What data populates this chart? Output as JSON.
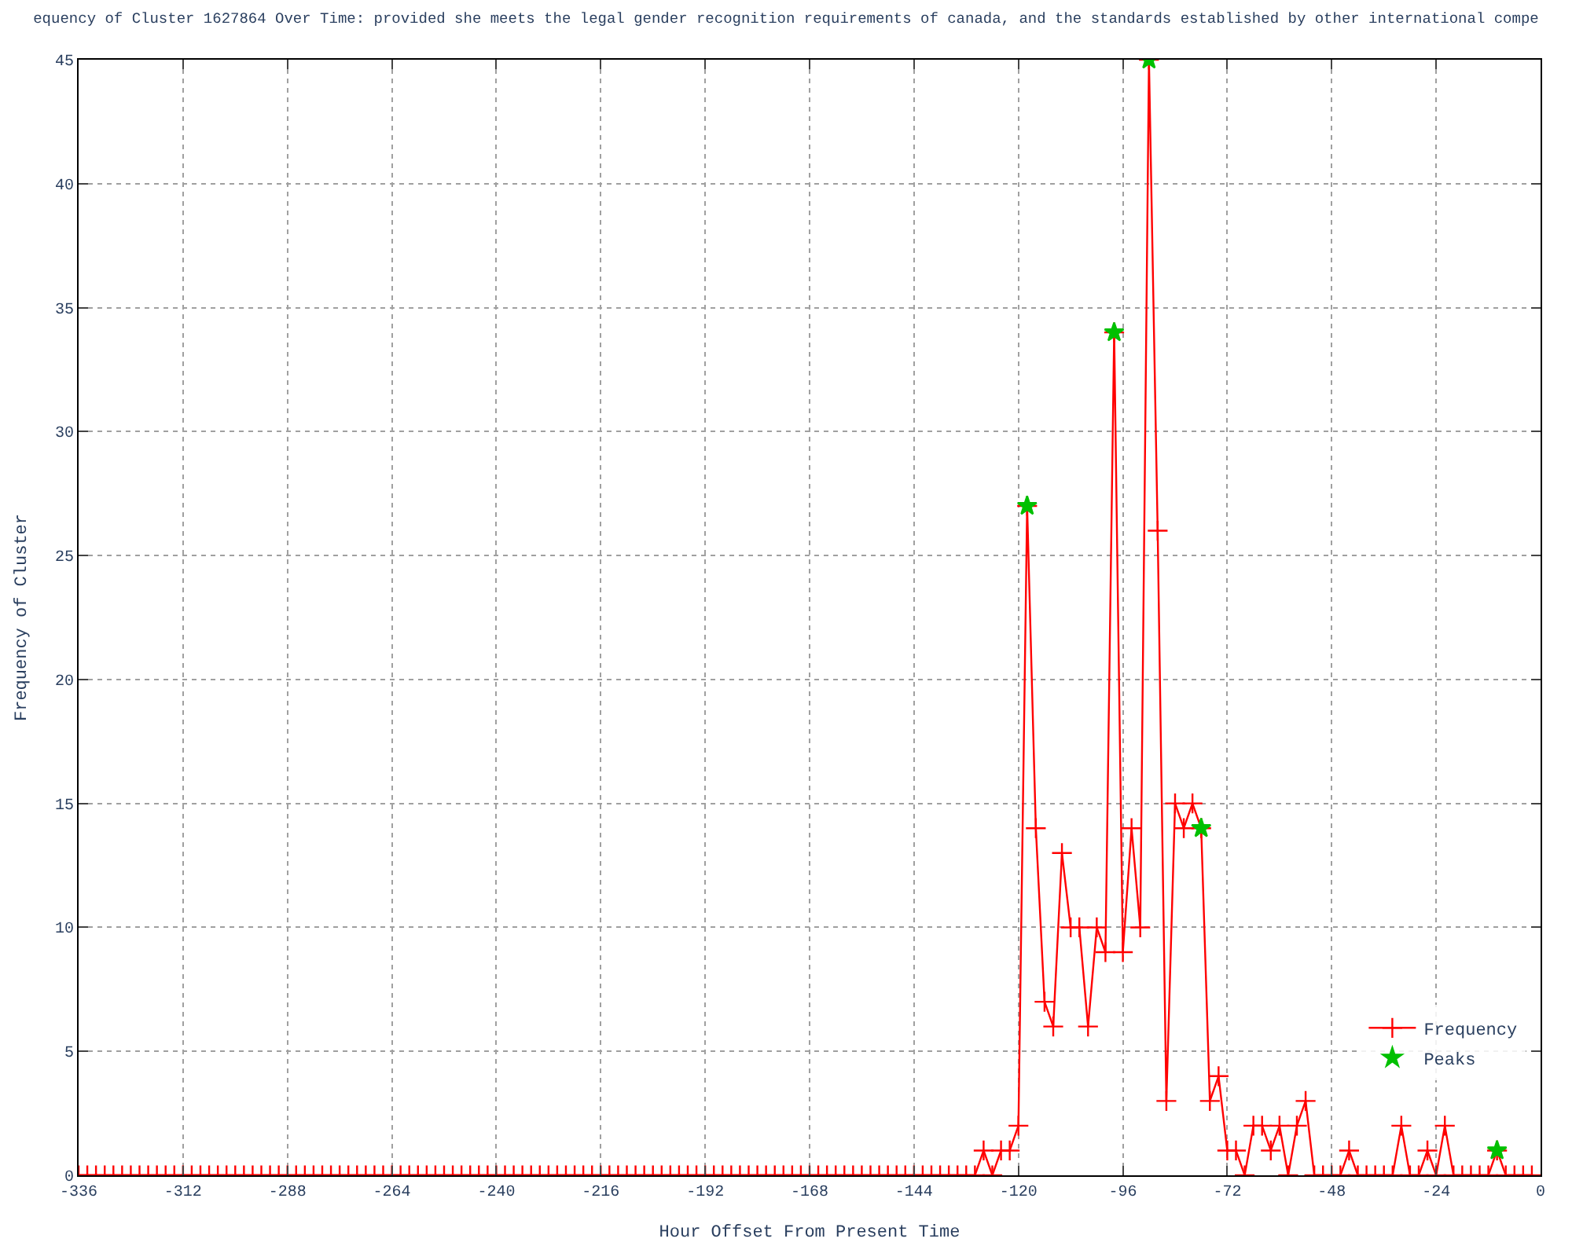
{
  "chart_data": {
    "type": "line",
    "title": "equency of Cluster 1627864 Over Time: provided she meets the legal gender recognition requirements of canada, and the standards established by other international compe",
    "xlabel": "Hour Offset From Present Time",
    "ylabel": "Frequency of Cluster",
    "xlim": [
      -336,
      0
    ],
    "xticks": [
      -336,
      -312,
      -288,
      -264,
      -240,
      -216,
      -192,
      -168,
      -144,
      -120,
      -96,
      -72,
      -48,
      -24,
      0
    ],
    "ylim": [
      0,
      45
    ],
    "yticks": [
      0,
      5,
      10,
      15,
      20,
      25,
      30,
      35,
      40,
      45
    ],
    "grid": true,
    "legend": "bottom right",
    "series": [
      {
        "name": "Frequency",
        "color": "#ff0000",
        "marker": "cross",
        "line_style": "solid",
        "x": [
          -336,
          -334,
          -332,
          -330,
          -328,
          -326,
          -324,
          -322,
          -320,
          -318,
          -316,
          -314,
          -312,
          -310,
          -308,
          -306,
          -304,
          -302,
          -300,
          -298,
          -296,
          -294,
          -292,
          -290,
          -288,
          -286,
          -284,
          -282,
          -280,
          -278,
          -276,
          -274,
          -272,
          -270,
          -268,
          -266,
          -264,
          -262,
          -260,
          -258,
          -256,
          -254,
          -252,
          -250,
          -248,
          -246,
          -244,
          -242,
          -240,
          -238,
          -236,
          -234,
          -232,
          -230,
          -228,
          -226,
          -224,
          -222,
          -220,
          -218,
          -216,
          -214,
          -212,
          -210,
          -208,
          -206,
          -204,
          -202,
          -200,
          -198,
          -196,
          -194,
          -192,
          -190,
          -188,
          -186,
          -184,
          -182,
          -180,
          -178,
          -176,
          -174,
          -172,
          -170,
          -168,
          -166,
          -164,
          -162,
          -160,
          -158,
          -156,
          -154,
          -152,
          -150,
          -148,
          -146,
          -144,
          -142,
          -140,
          -138,
          -136,
          -134,
          -132,
          -130,
          -128,
          -126,
          -124,
          -122,
          -120,
          -118,
          -116,
          -114,
          -112,
          -110,
          -108,
          -106,
          -104,
          -102,
          -100,
          -98,
          -96,
          -94,
          -92,
          -90,
          -88,
          -86,
          -84,
          -82,
          -80,
          -78,
          -76,
          -74,
          -72,
          -70,
          -68,
          -66,
          -64,
          -62,
          -60,
          -58,
          -56,
          -54,
          -52,
          -50,
          -48,
          -46,
          -44,
          -42,
          -40,
          -38,
          -36,
          -34,
          -32,
          -30,
          -28,
          -26,
          -24,
          -22,
          -20,
          -18,
          -16,
          -14,
          -12,
          -10,
          -8,
          -6,
          -4,
          -2
        ],
        "values": [
          0,
          0,
          0,
          0,
          0,
          0,
          0,
          0,
          0,
          0,
          0,
          0,
          0,
          0,
          0,
          0,
          0,
          0,
          0,
          0,
          0,
          0,
          0,
          0,
          0,
          0,
          0,
          0,
          0,
          0,
          0,
          0,
          0,
          0,
          0,
          0,
          0,
          0,
          0,
          0,
          0,
          0,
          0,
          0,
          0,
          0,
          0,
          0,
          0,
          0,
          0,
          0,
          0,
          0,
          0,
          0,
          0,
          0,
          0,
          0,
          0,
          0,
          0,
          0,
          0,
          0,
          0,
          0,
          0,
          0,
          0,
          0,
          0,
          0,
          0,
          0,
          0,
          0,
          0,
          0,
          0,
          0,
          0,
          0,
          0,
          0,
          0,
          0,
          0,
          0,
          0,
          0,
          0,
          0,
          0,
          0,
          0,
          0,
          0,
          0,
          0,
          0,
          0,
          0,
          1,
          0,
          1,
          1,
          2,
          27,
          14,
          7,
          6,
          13,
          10,
          10,
          6,
          10,
          9,
          34,
          9,
          14,
          10,
          45,
          26,
          3,
          15,
          14,
          15,
          14,
          3,
          4,
          1,
          1,
          0,
          2,
          2,
          1,
          2,
          0,
          2,
          3,
          0,
          0,
          0,
          0,
          1,
          0,
          0,
          0,
          0,
          0,
          2,
          0,
          0,
          1,
          0,
          2,
          0,
          0,
          0,
          0,
          0,
          1,
          0,
          0,
          0,
          0
        ]
      },
      {
        "name": "Peaks",
        "type": "scatter",
        "color": "#00c000",
        "marker": "star",
        "x": [
          -118,
          -98,
          -90,
          -78,
          -10
        ],
        "values": [
          27,
          34,
          45,
          14,
          1
        ]
      }
    ]
  }
}
